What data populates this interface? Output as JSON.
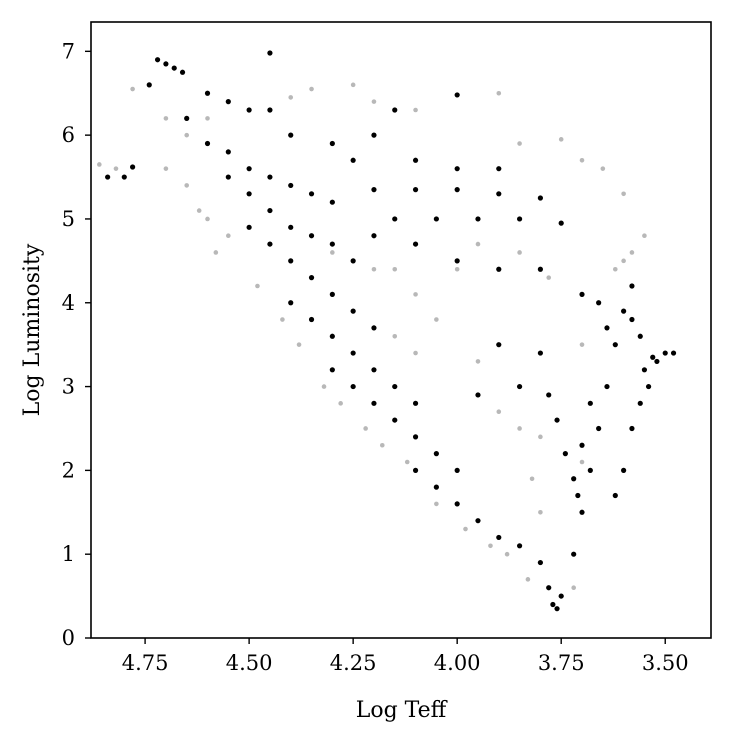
{
  "chart_data": {
    "type": "scatter",
    "title": "",
    "xlabel": "Log Teff",
    "ylabel": "Log Luminosity",
    "xlim": [
      4.88,
      3.39
    ],
    "ylim": [
      0,
      7.35
    ],
    "x_inverted": true,
    "grid": false,
    "xticks": [
      4.75,
      4.5,
      4.25,
      4.0,
      3.75,
      3.5
    ],
    "xtick_labels": [
      "4.75",
      "4.50",
      "4.25",
      "4.00",
      "3.75",
      "3.50"
    ],
    "yticks": [
      0,
      1,
      2,
      3,
      4,
      5,
      6,
      7
    ],
    "ytick_labels": [
      "0",
      "1",
      "2",
      "3",
      "4",
      "5",
      "6",
      "7"
    ],
    "colors": {
      "points_dark": "#000000",
      "points_light": "#888888",
      "axes": "#000000"
    },
    "series": [
      {
        "values": [
          [
            4.7,
            6.85
          ],
          [
            4.72,
            6.9
          ],
          [
            4.68,
            6.8
          ],
          [
            4.45,
            6.98
          ],
          [
            4.66,
            6.75
          ],
          [
            4.74,
            6.6
          ],
          [
            4.6,
            6.5
          ],
          [
            4.55,
            6.4
          ],
          [
            4.5,
            6.3
          ],
          [
            4.84,
            5.5
          ],
          [
            4.8,
            5.5
          ],
          [
            4.78,
            5.62
          ],
          [
            4.65,
            6.2
          ],
          [
            4.6,
            5.9
          ],
          [
            4.55,
            5.8
          ],
          [
            4.5,
            5.6
          ],
          [
            4.45,
            5.5
          ],
          [
            4.4,
            5.4
          ],
          [
            4.35,
            5.3
          ],
          [
            4.3,
            5.2
          ],
          [
            4.55,
            5.5
          ],
          [
            4.5,
            5.3
          ],
          [
            4.45,
            5.1
          ],
          [
            4.4,
            4.9
          ],
          [
            4.35,
            4.8
          ],
          [
            4.3,
            4.7
          ],
          [
            4.25,
            4.5
          ],
          [
            4.5,
            4.9
          ],
          [
            4.45,
            4.7
          ],
          [
            4.4,
            4.5
          ],
          [
            4.35,
            4.3
          ],
          [
            4.3,
            4.1
          ],
          [
            4.25,
            3.9
          ],
          [
            4.2,
            3.7
          ],
          [
            4.4,
            4.0
          ],
          [
            4.35,
            3.8
          ],
          [
            4.3,
            3.6
          ],
          [
            4.25,
            3.4
          ],
          [
            4.2,
            3.2
          ],
          [
            4.15,
            3.0
          ],
          [
            4.1,
            2.8
          ],
          [
            4.3,
            3.2
          ],
          [
            4.25,
            3.0
          ],
          [
            4.2,
            2.8
          ],
          [
            4.15,
            2.6
          ],
          [
            4.1,
            2.4
          ],
          [
            4.05,
            2.2
          ],
          [
            4.0,
            2.0
          ],
          [
            4.1,
            2.0
          ],
          [
            4.05,
            1.8
          ],
          [
            4.0,
            1.6
          ],
          [
            3.95,
            1.4
          ],
          [
            3.9,
            1.2
          ],
          [
            3.85,
            1.1
          ],
          [
            3.8,
            0.9
          ],
          [
            3.78,
            0.6
          ],
          [
            3.77,
            0.4
          ],
          [
            3.76,
            0.35
          ],
          [
            3.75,
            0.5
          ],
          [
            3.72,
            1.0
          ],
          [
            3.7,
            1.5
          ],
          [
            3.68,
            2.0
          ],
          [
            3.66,
            2.5
          ],
          [
            3.64,
            3.0
          ],
          [
            3.62,
            3.5
          ],
          [
            3.6,
            3.9
          ],
          [
            3.58,
            4.2
          ],
          [
            3.55,
            3.2
          ],
          [
            3.52,
            3.3
          ],
          [
            3.5,
            3.4
          ],
          [
            3.48,
            3.4
          ],
          [
            3.6,
            2.0
          ],
          [
            3.58,
            2.5
          ],
          [
            3.56,
            2.8
          ],
          [
            3.54,
            3.0
          ],
          [
            3.62,
            1.7
          ],
          [
            3.7,
            2.3
          ],
          [
            3.68,
            2.8
          ],
          [
            4.2,
            5.35
          ],
          [
            4.1,
            5.35
          ],
          [
            4.0,
            5.35
          ],
          [
            3.9,
            5.3
          ],
          [
            3.8,
            5.25
          ],
          [
            4.15,
            5.0
          ],
          [
            4.05,
            5.0
          ],
          [
            3.95,
            5.0
          ],
          [
            3.85,
            5.0
          ],
          [
            3.75,
            4.95
          ],
          [
            4.2,
            4.8
          ],
          [
            4.1,
            4.7
          ],
          [
            4.0,
            4.5
          ],
          [
            3.9,
            4.4
          ],
          [
            3.8,
            4.4
          ],
          [
            3.7,
            4.1
          ],
          [
            3.9,
            3.5
          ],
          [
            3.8,
            3.4
          ],
          [
            3.85,
            3.0
          ],
          [
            3.95,
            2.9
          ],
          [
            4.0,
            6.48
          ],
          [
            4.15,
            6.3
          ],
          [
            4.2,
            6.0
          ],
          [
            4.1,
            5.7
          ],
          [
            4.0,
            5.6
          ],
          [
            3.9,
            5.6
          ],
          [
            4.3,
            5.9
          ],
          [
            4.25,
            5.7
          ],
          [
            4.4,
            6.0
          ],
          [
            4.45,
            6.3
          ],
          [
            3.78,
            2.9
          ],
          [
            3.76,
            2.6
          ],
          [
            3.74,
            2.2
          ],
          [
            3.72,
            1.9
          ],
          [
            3.71,
            1.7
          ],
          [
            3.66,
            4.0
          ],
          [
            3.64,
            3.7
          ],
          [
            3.58,
            3.8
          ],
          [
            3.56,
            3.6
          ],
          [
            3.53,
            3.35
          ]
        ]
      },
      {
        "values": [
          [
            4.86,
            5.65
          ],
          [
            4.82,
            5.6
          ],
          [
            4.78,
            6.55
          ],
          [
            4.7,
            6.2
          ],
          [
            4.65,
            6.0
          ],
          [
            4.6,
            6.2
          ],
          [
            4.4,
            6.45
          ],
          [
            4.35,
            6.55
          ],
          [
            4.25,
            6.6
          ],
          [
            4.2,
            6.4
          ],
          [
            4.1,
            6.3
          ],
          [
            3.9,
            6.5
          ],
          [
            3.7,
            5.7
          ],
          [
            3.85,
            5.9
          ],
          [
            3.75,
            5.95
          ],
          [
            3.65,
            5.6
          ],
          [
            3.6,
            5.3
          ],
          [
            3.55,
            4.8
          ],
          [
            3.58,
            4.6
          ],
          [
            4.0,
            4.4
          ],
          [
            4.1,
            4.1
          ],
          [
            4.05,
            3.8
          ],
          [
            4.15,
            3.6
          ],
          [
            4.1,
            3.4
          ],
          [
            3.95,
            3.3
          ],
          [
            3.9,
            2.7
          ],
          [
            3.85,
            2.5
          ],
          [
            3.8,
            2.4
          ],
          [
            3.7,
            2.1
          ],
          [
            3.82,
            1.9
          ],
          [
            3.8,
            1.5
          ],
          [
            4.3,
            4.6
          ],
          [
            4.2,
            4.4
          ],
          [
            4.15,
            4.4
          ],
          [
            3.6,
            4.5
          ],
          [
            3.62,
            4.4
          ],
          [
            4.6,
            5.0
          ],
          [
            4.55,
            4.8
          ],
          [
            4.65,
            5.4
          ],
          [
            4.7,
            5.6
          ],
          [
            4.62,
            5.1
          ],
          [
            4.58,
            4.6
          ],
          [
            4.48,
            4.2
          ],
          [
            4.42,
            3.8
          ],
          [
            4.38,
            3.5
          ],
          [
            4.32,
            3.0
          ],
          [
            4.28,
            2.8
          ],
          [
            4.22,
            2.5
          ],
          [
            4.18,
            2.3
          ],
          [
            4.12,
            2.1
          ],
          [
            4.05,
            1.6
          ],
          [
            3.98,
            1.3
          ],
          [
            3.92,
            1.1
          ],
          [
            3.88,
            1.0
          ],
          [
            3.83,
            0.7
          ],
          [
            3.72,
            0.6
          ],
          [
            3.95,
            4.7
          ],
          [
            3.85,
            4.6
          ],
          [
            3.78,
            4.3
          ],
          [
            3.7,
            3.5
          ]
        ]
      }
    ]
  }
}
